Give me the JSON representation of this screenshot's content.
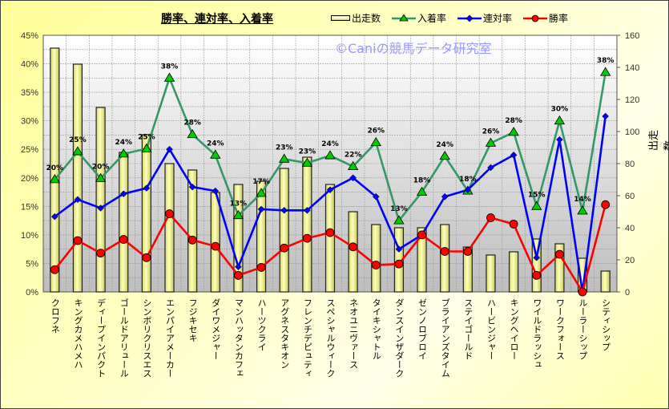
{
  "chart_data": {
    "type": "bar+line",
    "title": "勝率、連対率、入着率",
    "watermark": "©Caniの競馬データ研究室",
    "categories": [
      "クロフネ",
      "キングカメハメハ",
      "ディープインパクト",
      "ゴールドアリュール",
      "シンボリクリスエス",
      "エンパイアメーカー",
      "フジキセキ",
      "ダイワメジャー",
      "マンハッタンカフェ",
      "ハーツクライ",
      "アグネスタキオン",
      "フレンチデピュティ",
      "スペシャルウィーク",
      "ネオユニヴァース",
      "タイキシャトル",
      "ダンスインザダーク",
      "ゼンノロブロイ",
      "ブライアンズタイム",
      "ステイゴールド",
      "ハービンジャー",
      "キングヘイロー",
      "ワイルドラッシュ",
      "ワークフォース",
      "ルーラーシップ",
      "シティシップ"
    ],
    "bar_series": {
      "name": "出走数",
      "axis": "right",
      "color": "#ffff99",
      "values": [
        152,
        142,
        115,
        87,
        98,
        80,
        76,
        62,
        67,
        69,
        77,
        84,
        67,
        50,
        42,
        40,
        40,
        42,
        28,
        23,
        25,
        33,
        30,
        21,
        13
      ]
    },
    "line_series": [
      {
        "name": "入着率",
        "marker": "triangle",
        "color": "#339966",
        "marker_color": "#00cc00",
        "values": [
          19.7,
          24.6,
          19.9,
          24.2,
          25.1,
          37.5,
          27.6,
          24.0,
          13.4,
          17.3,
          23.3,
          22.6,
          23.9,
          22.0,
          26.2,
          12.5,
          17.5,
          23.8,
          17.7,
          26.1,
          28.0,
          15.0,
          30.0,
          14.2,
          38.5
        ],
        "data_labels": [
          "20%",
          "25%",
          "20%",
          "24%",
          "25%",
          "38%",
          "28%",
          "24%",
          "13%",
          "17%",
          "23%",
          "23%",
          "24%",
          "22%",
          "26%",
          "13%",
          "18%",
          "24%",
          "18%",
          "26%",
          "28%",
          "15%",
          "30%",
          "14%",
          "38%"
        ]
      },
      {
        "name": "連対率",
        "marker": "diamond",
        "color": "#0000ff",
        "marker_color": "#0000ff",
        "values": [
          13.2,
          16.2,
          14.7,
          17.2,
          18.2,
          25.0,
          18.4,
          17.7,
          4.4,
          14.5,
          14.3,
          14.3,
          17.9,
          20.0,
          16.7,
          7.5,
          10.0,
          16.7,
          17.9,
          21.8,
          24.0,
          6.0,
          26.7,
          0,
          30.8
        ]
      },
      {
        "name": "勝率",
        "marker": "circle",
        "color": "#ff0000",
        "marker_color": "#ff0000",
        "values": [
          3.9,
          9.0,
          6.8,
          9.2,
          6.0,
          13.7,
          9.1,
          8.0,
          2.9,
          4.3,
          7.7,
          9.4,
          10.4,
          7.9,
          4.7,
          4.9,
          10.0,
          7.1,
          7.1,
          13.0,
          11.9,
          2.9,
          6.6,
          0,
          15.3
        ]
      }
    ],
    "left_axis": {
      "range": [
        0,
        45
      ],
      "ticks": [
        "0%",
        "5%",
        "10%",
        "15%",
        "20%",
        "25%",
        "30%",
        "35%",
        "40%",
        "45%"
      ]
    },
    "right_axis": {
      "label": "出走数",
      "range": [
        0,
        160
      ],
      "ticks": [
        "0",
        "20",
        "40",
        "60",
        "80",
        "100",
        "120",
        "140",
        "160"
      ]
    },
    "legend": [
      "出走数",
      "入着率",
      "連対率",
      "勝率"
    ],
    "legend_placement": "top-right",
    "grid": true
  }
}
